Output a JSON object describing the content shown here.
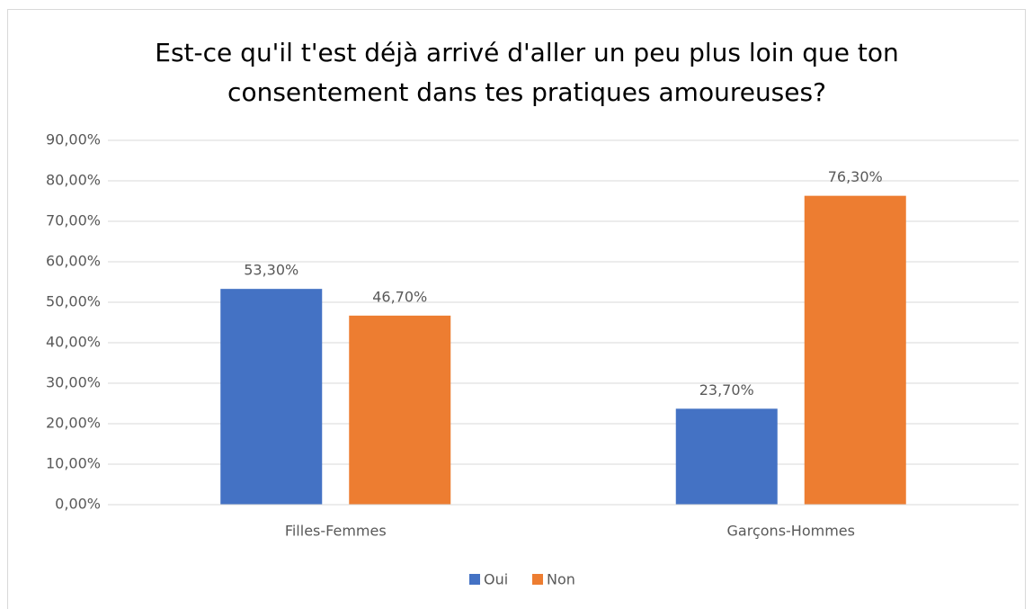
{
  "chart_data": {
    "type": "bar",
    "title": [
      "Est-ce qu'il t'est déjà arrivé d'aller un peu plus loin que ton",
      "consentement dans tes pratiques amoureuses?"
    ],
    "categories": [
      "Filles-Femmes",
      "Garçons-Hommes"
    ],
    "series": [
      {
        "name": "Oui",
        "color": "#4472c4",
        "values": [
          53.3,
          23.7
        ],
        "value_labels": [
          "53,30%",
          "23,70%"
        ]
      },
      {
        "name": "Non",
        "color": "#ed7d31",
        "values": [
          46.7,
          76.3
        ],
        "value_labels": [
          "46,70%",
          "76,30%"
        ]
      }
    ],
    "ylim": [
      0,
      90
    ],
    "yticks": [
      {
        "value": 0,
        "label": "0,00%"
      },
      {
        "value": 10,
        "label": "10,00%"
      },
      {
        "value": 20,
        "label": "20,00%"
      },
      {
        "value": 30,
        "label": "30,00%"
      },
      {
        "value": 40,
        "label": "40,00%"
      },
      {
        "value": 50,
        "label": "50,00%"
      },
      {
        "value": 60,
        "label": "60,00%"
      },
      {
        "value": 70,
        "label": "70,00%"
      },
      {
        "value": 80,
        "label": "80,00%"
      },
      {
        "value": 90,
        "label": "90,00%"
      }
    ],
    "grid": true,
    "legend": "bottom"
  }
}
